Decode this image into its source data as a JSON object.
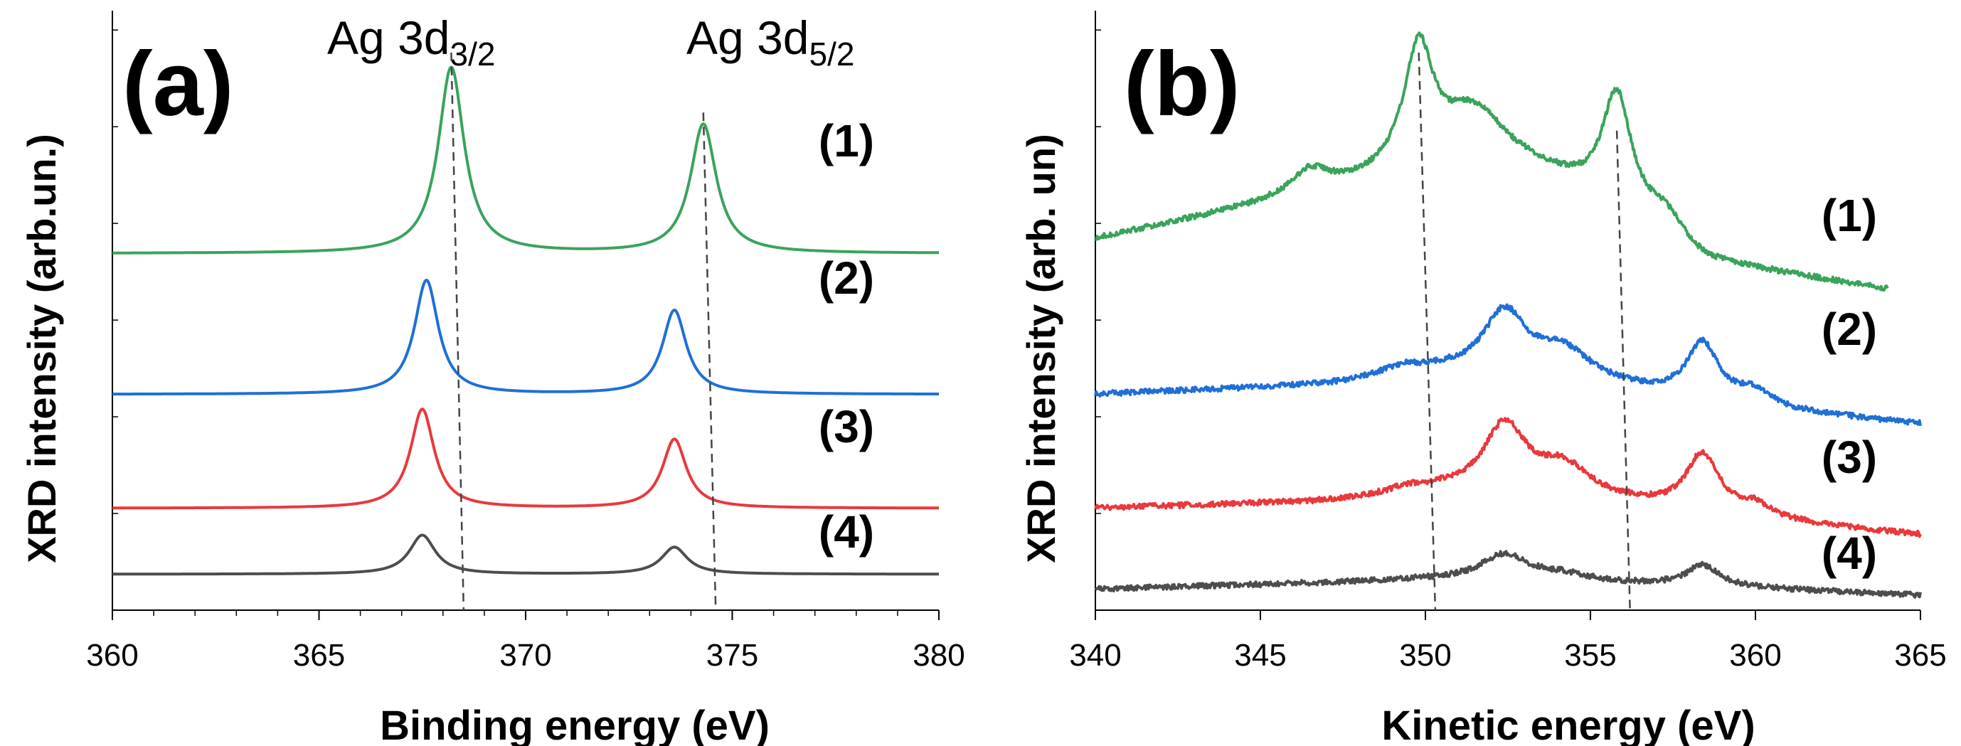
{
  "chart_data": [
    {
      "type": "line",
      "panel_label": "(a)",
      "xlabel": "Binding energy (eV)",
      "ylabel": "XRD intensity (arb.un.)",
      "xlim": [
        360,
        380
      ],
      "ylim": [
        0,
        10
      ],
      "xticks": [
        "360",
        "365",
        "370",
        "375",
        "380"
      ],
      "annotations": [
        {
          "base": "Ag 3d",
          "sub": "3/2"
        },
        {
          "base": "Ag 3d",
          "sub": "5/2"
        }
      ],
      "guides": [
        {
          "x": [
            368.2,
            368.5
          ],
          "y": [
            9.3,
            0.0
          ]
        },
        {
          "x": [
            374.3,
            374.6
          ],
          "y": [
            8.3,
            0.0
          ]
        }
      ],
      "series": [
        {
          "name": "(1)",
          "color": "#3aa35c",
          "baseline": 5.95,
          "peaks": [
            {
              "x": 368.2,
              "h": 3.1,
              "w": 0.38
            },
            {
              "x": 374.3,
              "h": 2.15,
              "w": 0.38
            }
          ]
        },
        {
          "name": "(2)",
          "color": "#1f6fd6",
          "baseline": 3.6,
          "peaks": [
            {
              "x": 367.6,
              "h": 1.9,
              "w": 0.35
            },
            {
              "x": 373.6,
              "h": 1.4,
              "w": 0.35
            }
          ]
        },
        {
          "name": "(3)",
          "color": "#e8393c",
          "baseline": 1.7,
          "peaks": [
            {
              "x": 367.5,
              "h": 1.65,
              "w": 0.35
            },
            {
              "x": 373.6,
              "h": 1.15,
              "w": 0.35
            }
          ]
        },
        {
          "name": "(4)",
          "color": "#4d4d4d",
          "baseline": 0.6,
          "peaks": [
            {
              "x": 367.5,
              "h": 0.65,
              "w": 0.38
            },
            {
              "x": 373.6,
              "h": 0.45,
              "w": 0.38
            }
          ]
        }
      ]
    },
    {
      "type": "line",
      "panel_label": "(b)",
      "xlabel": "Kinetic energy (eV)",
      "ylabel": "XRD intensity (arb. un)",
      "xlim": [
        340,
        365
      ],
      "ylim": [
        0,
        10
      ],
      "xticks": [
        "340",
        "345",
        "350",
        "355",
        "360",
        "365"
      ],
      "guides": [
        {
          "x": [
            349.8,
            350.3
          ],
          "y": [
            9.3,
            0.0
          ]
        },
        {
          "x": [
            355.8,
            356.2
          ],
          "y": [
            8.0,
            0.0
          ]
        }
      ],
      "series": [
        {
          "name": "(1)",
          "color": "#3aa35c",
          "x_end": 364,
          "baseline_points": [
            [
              340,
              6.2
            ],
            [
              345,
              6.75
            ],
            [
              348,
              7.1
            ],
            [
              350.5,
              7.5
            ],
            [
              352,
              7.75
            ],
            [
              354,
              7.2
            ],
            [
              355,
              6.9
            ],
            [
              357,
              6.3
            ],
            [
              358.5,
              5.8
            ],
            [
              364,
              5.35
            ]
          ],
          "peaks": [
            {
              "x": 346.5,
              "h": 0.4,
              "w": 0.7
            },
            {
              "x": 349.8,
              "h": 2.0,
              "w": 0.55
            },
            {
              "x": 351.3,
              "h": 0.6,
              "w": 0.9
            },
            {
              "x": 355.8,
              "h": 1.95,
              "w": 0.55
            },
            {
              "x": 357.3,
              "h": 0.35,
              "w": 0.6
            }
          ]
        },
        {
          "name": "(2)",
          "color": "#1f6fd6",
          "x_end": 365,
          "baseline_points": [
            [
              340,
              3.6
            ],
            [
              347,
              3.75
            ],
            [
              350.5,
              3.95
            ],
            [
              354,
              3.85
            ],
            [
              358,
              3.5
            ],
            [
              361,
              3.3
            ],
            [
              365,
              3.1
            ]
          ],
          "peaks": [
            {
              "x": 349.3,
              "h": 0.15,
              "w": 0.8
            },
            {
              "x": 352.4,
              "h": 1.05,
              "w": 0.8
            },
            {
              "x": 354.2,
              "h": 0.45,
              "w": 1.0
            },
            {
              "x": 358.4,
              "h": 0.95,
              "w": 0.6
            },
            {
              "x": 360,
              "h": 0.25,
              "w": 0.6
            }
          ]
        },
        {
          "name": "(3)",
          "color": "#e8393c",
          "x_end": 365,
          "baseline_points": [
            [
              340,
              1.7
            ],
            [
              347,
              1.8
            ],
            [
              350.5,
              1.95
            ],
            [
              354,
              1.85
            ],
            [
              358,
              1.65
            ],
            [
              361,
              1.45
            ],
            [
              365,
              1.25
            ]
          ],
          "peaks": [
            {
              "x": 349.5,
              "h": 0.1,
              "w": 0.8
            },
            {
              "x": 352.4,
              "h": 1.15,
              "w": 0.8
            },
            {
              "x": 354.2,
              "h": 0.5,
              "w": 1.0
            },
            {
              "x": 358.4,
              "h": 0.95,
              "w": 0.6
            },
            {
              "x": 360,
              "h": 0.2,
              "w": 0.6
            }
          ]
        },
        {
          "name": "(4)",
          "color": "#4d4d4d",
          "x_end": 365,
          "baseline_points": [
            [
              340,
              0.35
            ],
            [
              350,
              0.5
            ],
            [
              354,
              0.45
            ],
            [
              358,
              0.4
            ],
            [
              365,
              0.25
            ]
          ],
          "peaks": [
            {
              "x": 352.4,
              "h": 0.45,
              "w": 0.9
            },
            {
              "x": 354.2,
              "h": 0.12,
              "w": 1.0
            },
            {
              "x": 358.4,
              "h": 0.35,
              "w": 0.6
            }
          ]
        }
      ]
    }
  ]
}
